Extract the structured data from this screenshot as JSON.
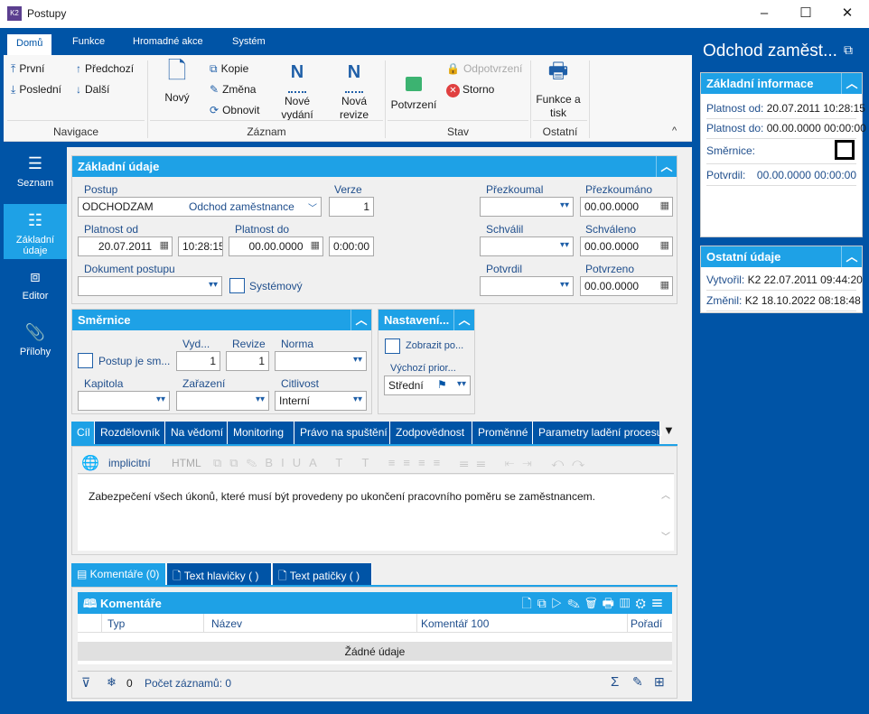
{
  "window": {
    "title": "Postupy",
    "icon": "k2-app-icon",
    "minimize": "–",
    "maximize": "☐",
    "close": "✕"
  },
  "ribbon": {
    "tabs": [
      "Domů",
      "Funkce",
      "Hromadné akce",
      "Systém"
    ],
    "nav": {
      "first": "První",
      "prev": "Předchozí",
      "last": "Poslední",
      "next": "Další",
      "group": "Navigace"
    },
    "record": {
      "new": "Nový",
      "copy": "Kopie",
      "edit": "Změna",
      "refresh": "Obnovit",
      "new_issue": "Nové vydání",
      "new_revision": "Nová revize",
      "group": "Záznam"
    },
    "state": {
      "confirm": "Potvrzení",
      "unconfirm": "Odpotvrzení",
      "cancel": "Storno",
      "group": "Stav"
    },
    "other": {
      "print": "Funkce a tisk",
      "group": "Ostatní"
    }
  },
  "sidebar": {
    "items": [
      {
        "label": "Seznam",
        "icon": "list-icon"
      },
      {
        "label": "Základní údaje",
        "icon": "details-icon",
        "active": true
      },
      {
        "label": "Editor",
        "icon": "editor-icon"
      },
      {
        "label": "Přílohy",
        "icon": "paperclip-icon"
      }
    ]
  },
  "basic": {
    "title": "Základní údaje",
    "postup_label": "Postup",
    "postup_code": "ODCHODZAM",
    "postup_name": "Odchod zaměstnance",
    "verze_label": "Verze",
    "verze": "1",
    "platnost_od_label": "Platnost od",
    "platnost_od_date": "20.07.2011",
    "platnost_od_time": "10:28:15",
    "platnost_do_label": "Platnost do",
    "platnost_do_date": "00.00.0000",
    "platnost_do_time": "0:00:00",
    "dokument_label": "Dokument postupu",
    "dokument": "",
    "systemovy_label": "Systémový",
    "systemovy": false,
    "prezkoumal_label": "Přezkoumal",
    "prezkoumal": "",
    "prezkoumano_label": "Přezkoumáno",
    "prezkoumano": "00.00.0000",
    "schvalil_label": "Schválil",
    "schvalil": "",
    "schvaleno_label": "Schváleno",
    "schvaleno": "00.00.0000",
    "potvrdil_label": "Potvrdil",
    "potvrdil": "",
    "potvrzeno_label": "Potvrzeno",
    "potvrzeno": "00.00.0000"
  },
  "smernice": {
    "title": "Směrnice",
    "postup_je_label": "Postup je sm...",
    "postup_je": false,
    "vyd_label": "Vyd...",
    "vyd": "1",
    "revize_label": "Revize",
    "revize": "1",
    "norma_label": "Norma",
    "norma": "",
    "kapitola_label": "Kapitola",
    "kapitola": "",
    "zarazeni_label": "Zařazení",
    "zarazeni": "",
    "citlivost_label": "Citlivost",
    "citlivost": "Interní"
  },
  "nastaveni": {
    "title": "Nastavení...",
    "zobrazit_label": "Zobrazit po...",
    "zobrazit": false,
    "priorita_label": "Výchozí prior...",
    "priorita": "Střední",
    "priority_color": "#0054a6"
  },
  "detail_tabs": [
    "Cíl",
    "Rozdělovník",
    "Na vědomí",
    "Monitoring",
    "Právo na spuštění",
    "Zodpovědnost",
    "Proměnné",
    "Parametry ladění procesu"
  ],
  "editor": {
    "language": "implicitní",
    "format": "HTML",
    "text": "Zabezpečení všech úkonů, které musí být provedeny po ukončení pracovního poměru se zaměstnancem."
  },
  "bottom_tabs": [
    "Komentáře (0)",
    "Text hlavičky ( )",
    "Text patičky ( )"
  ],
  "comments": {
    "title": "Komentáře",
    "columns": [
      "Typ",
      "Název",
      "Komentář 100",
      "Pořadí"
    ],
    "empty": "Žádné údaje",
    "frozen": "0",
    "count": "Počet záznamů: 0"
  },
  "right": {
    "title": "Odchod zaměst...",
    "info_title": "Základní informace",
    "info": [
      {
        "k": "Platnost od:",
        "v": "20.07.2011 10:28:15"
      },
      {
        "k": "Platnost do:",
        "v": "00.00.0000 00:00:00"
      },
      {
        "k": "Směrnice:",
        "v": ""
      },
      {
        "k": "Potvrdil:",
        "v": "00.00.0000 00:00:00"
      }
    ],
    "other_title": "Ostatní údaje",
    "other": [
      {
        "k": "Vytvořil:",
        "v": "K2 22.07.2011 09:44:20"
      },
      {
        "k": "Změnil:",
        "v": "K2 18.10.2022 08:18:48"
      }
    ]
  },
  "colors": {
    "dark_blue": "#0054a6",
    "light_blue": "#1ea1e6",
    "confirm_green": "#3cb371",
    "cancel_red": "#e04040"
  }
}
